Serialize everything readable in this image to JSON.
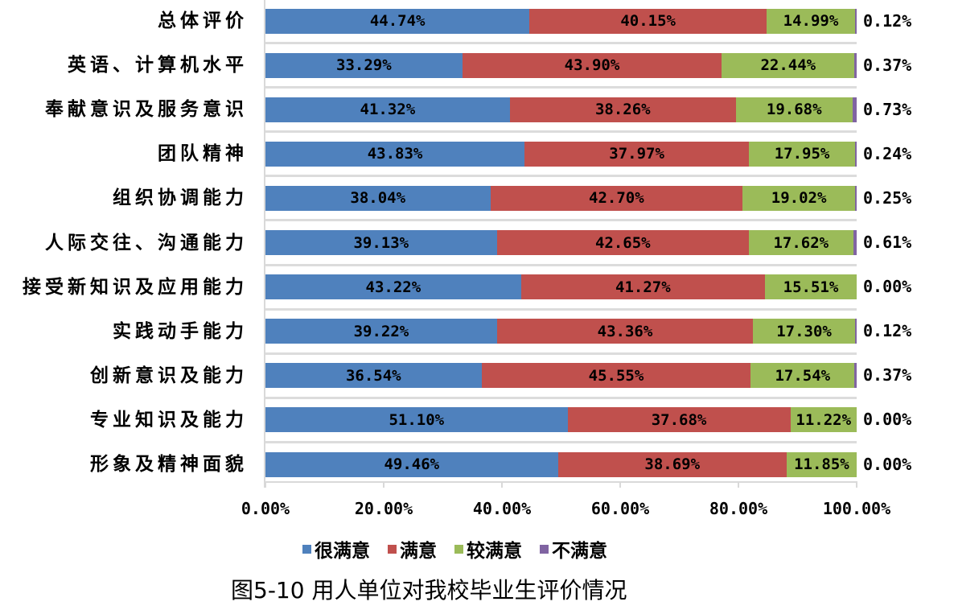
{
  "chart_data": {
    "type": "bar",
    "orientation": "horizontal",
    "stacked": "percent",
    "title": "图5-10 用人单位对我校毕业生评价情况",
    "xlabel": "",
    "ylabel": "",
    "xlim": [
      0,
      100
    ],
    "x_ticks": [
      "0.00%",
      "20.00%",
      "40.00%",
      "60.00%",
      "80.00%",
      "100.00%"
    ],
    "grid": false,
    "legend_position": "bottom",
    "categories": [
      "总体评价",
      "英语、计算机水平",
      "奉献意识及服务意识",
      "团队精神",
      "组织协调能力",
      "人际交往、沟通能力",
      "接受新知识及应用能力",
      "实践动手能力",
      "创新意识及能力",
      "专业知识及能力",
      "形象及精神面貌"
    ],
    "series": [
      {
        "name": "很满意",
        "color": "#4f81bd",
        "values": [
          44.74,
          33.29,
          41.32,
          43.83,
          38.04,
          39.13,
          43.22,
          39.22,
          36.54,
          51.1,
          49.46
        ]
      },
      {
        "name": "满意",
        "color": "#c0504d",
        "values": [
          40.15,
          43.9,
          38.26,
          37.97,
          42.7,
          42.65,
          41.27,
          43.36,
          45.55,
          37.68,
          38.69
        ]
      },
      {
        "name": "较满意",
        "color": "#9bbb59",
        "values": [
          14.99,
          22.44,
          19.68,
          17.95,
          19.02,
          17.62,
          15.51,
          17.3,
          17.54,
          11.22,
          11.85
        ]
      },
      {
        "name": "不满意",
        "color": "#8064a2",
        "values": [
          0.12,
          0.37,
          0.73,
          0.24,
          0.25,
          0.61,
          0.0,
          0.12,
          0.37,
          0.0,
          0.0
        ]
      }
    ],
    "data_labels": [
      [
        "44.74%",
        "40.15%",
        "14.99%",
        "0.12%"
      ],
      [
        "33.29%",
        "43.90%",
        "22.44%",
        "0.37%"
      ],
      [
        "41.32%",
        "38.26%",
        "19.68%",
        "0.73%"
      ],
      [
        "43.83%",
        "37.97%",
        "17.95%",
        "0.24%"
      ],
      [
        "38.04%",
        "42.70%",
        "19.02%",
        "0.25%"
      ],
      [
        "39.13%",
        "42.65%",
        "17.62%",
        "0.61%"
      ],
      [
        "43.22%",
        "41.27%",
        "15.51%",
        "0.00%"
      ],
      [
        "39.22%",
        "43.36%",
        "17.30%",
        "0.12%"
      ],
      [
        "36.54%",
        "45.55%",
        "17.54%",
        "0.37%"
      ],
      [
        "51.10%",
        "37.68%",
        "11.22%",
        "0.00%"
      ],
      [
        "49.46%",
        "38.69%",
        "11.85%",
        "0.00%"
      ]
    ]
  },
  "legend": {
    "items": [
      {
        "label": "很满意",
        "color": "#4f81bd"
      },
      {
        "label": "满意",
        "color": "#c0504d"
      },
      {
        "label": "较满意",
        "color": "#9bbb59"
      },
      {
        "label": "不满意",
        "color": "#8064a2"
      }
    ]
  },
  "caption": "图5-10 用人单位对我校毕业生评价情况"
}
